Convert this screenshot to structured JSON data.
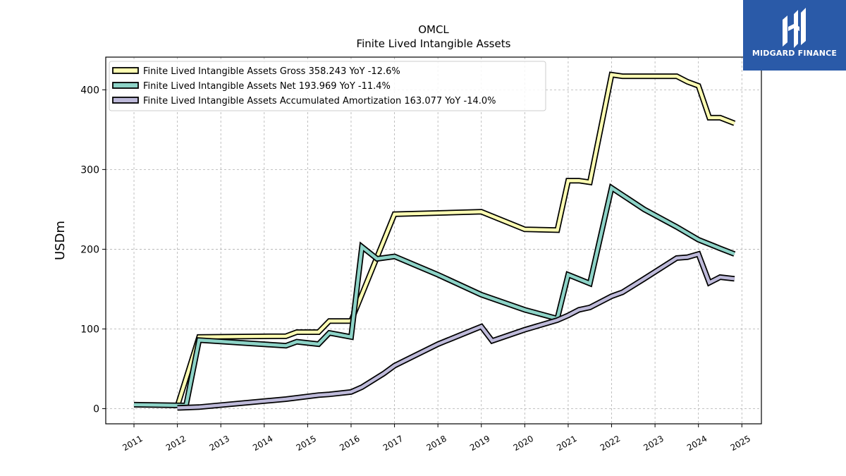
{
  "title": "OMCL",
  "subtitle": "Finite Lived Intangible Assets",
  "logo": {
    "text": "MIDGARD FINANCE",
    "bg_color": "#2a5aa8"
  },
  "chart_data": {
    "type": "line",
    "ylabel": "USDm",
    "xlabel": "",
    "xlim": [
      2010.35,
      2025.45
    ],
    "ylim": [
      -19,
      441
    ],
    "x_ticks": [
      2011,
      2012,
      2013,
      2014,
      2015,
      2016,
      2017,
      2018,
      2019,
      2020,
      2021,
      2022,
      2023,
      2024,
      2025
    ],
    "x_tick_labels": [
      "2011",
      "2012",
      "2013",
      "2014",
      "2015",
      "2016",
      "2017",
      "2018",
      "2019",
      "2020",
      "2021",
      "2022",
      "2023",
      "2024",
      "2025"
    ],
    "y_ticks": [
      0,
      100,
      200,
      300,
      400
    ],
    "y_tick_labels": [
      "0",
      "100",
      "200",
      "300",
      "400"
    ],
    "grid": true,
    "legend_position": "top-left",
    "series": [
      {
        "name": "Finite Lived Intangible Assets Gross  358.243 YoY -12.6%",
        "color": "#ffffb3",
        "points": [
          [
            2012.0,
            3
          ],
          [
            2012.5,
            90
          ],
          [
            2014.5,
            91
          ],
          [
            2014.75,
            96
          ],
          [
            2015.25,
            96
          ],
          [
            2015.5,
            110
          ],
          [
            2016.0,
            110
          ],
          [
            2017.0,
            244
          ],
          [
            2019.0,
            247
          ],
          [
            2020.0,
            225
          ],
          [
            2020.75,
            224
          ],
          [
            2021.0,
            286
          ],
          [
            2021.25,
            286
          ],
          [
            2021.5,
            284
          ],
          [
            2022.0,
            419
          ],
          [
            2022.25,
            417
          ],
          [
            2023.5,
            417
          ],
          [
            2023.75,
            410
          ],
          [
            2024.0,
            405
          ],
          [
            2024.25,
            365
          ],
          [
            2024.5,
            365
          ],
          [
            2024.83,
            358
          ]
        ]
      },
      {
        "name": "Finite Lived Intangible Assets Net  193.969 YoY -11.4%",
        "color": "#8dd3c7",
        "points": [
          [
            2011.0,
            5
          ],
          [
            2012.2,
            4
          ],
          [
            2012.5,
            86
          ],
          [
            2014.5,
            79
          ],
          [
            2014.75,
            84
          ],
          [
            2015.25,
            81
          ],
          [
            2015.5,
            95
          ],
          [
            2016.0,
            90
          ],
          [
            2016.25,
            203
          ],
          [
            2016.6,
            188
          ],
          [
            2017.0,
            191
          ],
          [
            2018.0,
            168
          ],
          [
            2019.0,
            143
          ],
          [
            2020.0,
            124
          ],
          [
            2020.75,
            113
          ],
          [
            2021.0,
            168
          ],
          [
            2021.5,
            157
          ],
          [
            2022.0,
            277
          ],
          [
            2022.75,
            250
          ],
          [
            2023.5,
            228
          ],
          [
            2024.0,
            212
          ],
          [
            2024.5,
            201
          ],
          [
            2024.83,
            194
          ]
        ]
      },
      {
        "name": "Finite Lived Intangible Assets Accumulated Amortization  163.077 YoY -14.0%",
        "color": "#bebada",
        "points": [
          [
            2012.0,
            1
          ],
          [
            2012.5,
            2
          ],
          [
            2014.5,
            12
          ],
          [
            2015.25,
            17
          ],
          [
            2015.5,
            18
          ],
          [
            2016.0,
            21
          ],
          [
            2016.25,
            27
          ],
          [
            2016.75,
            44
          ],
          [
            2017.0,
            54
          ],
          [
            2018.0,
            81
          ],
          [
            2018.5,
            92
          ],
          [
            2019.0,
            103
          ],
          [
            2019.25,
            85
          ],
          [
            2020.0,
            99
          ],
          [
            2020.75,
            111
          ],
          [
            2021.0,
            117
          ],
          [
            2021.25,
            124
          ],
          [
            2021.5,
            127
          ],
          [
            2022.0,
            141
          ],
          [
            2022.25,
            146
          ],
          [
            2022.75,
            163
          ],
          [
            2023.5,
            189
          ],
          [
            2023.75,
            190
          ],
          [
            2024.0,
            194
          ],
          [
            2024.25,
            158
          ],
          [
            2024.5,
            165
          ],
          [
            2024.83,
            163
          ]
        ]
      }
    ]
  }
}
